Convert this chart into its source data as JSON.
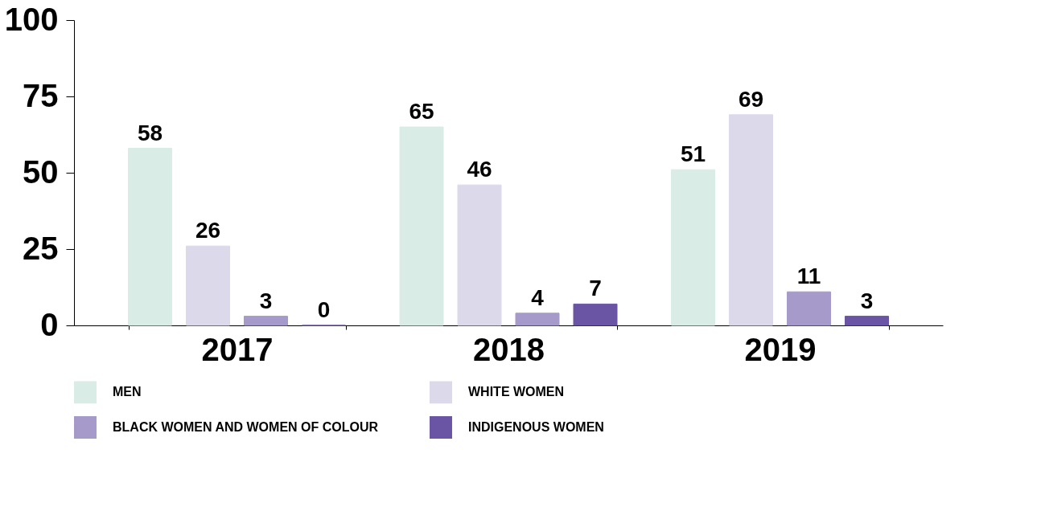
{
  "chart_data": {
    "type": "bar",
    "categories": [
      "2017",
      "2018",
      "2019"
    ],
    "series": [
      {
        "name": "MEN",
        "color": "#d9ece6",
        "values": [
          58,
          65,
          51
        ]
      },
      {
        "name": "WHITE WOMEN",
        "color": "#dcd9ea",
        "values": [
          26,
          46,
          69
        ]
      },
      {
        "name": "BLACK WOMEN AND WOMEN OF COLOUR",
        "color": "#a59ac9",
        "values": [
          3,
          4,
          11
        ]
      },
      {
        "name": "INDIGENOUS WOMEN",
        "color": "#6a55a5",
        "values": [
          0,
          7,
          3
        ]
      }
    ],
    "ylim": [
      0,
      100
    ],
    "yticks": [
      0,
      25,
      50,
      75,
      100
    ],
    "data_labels": true,
    "legend": "bottom",
    "grid": false
  }
}
